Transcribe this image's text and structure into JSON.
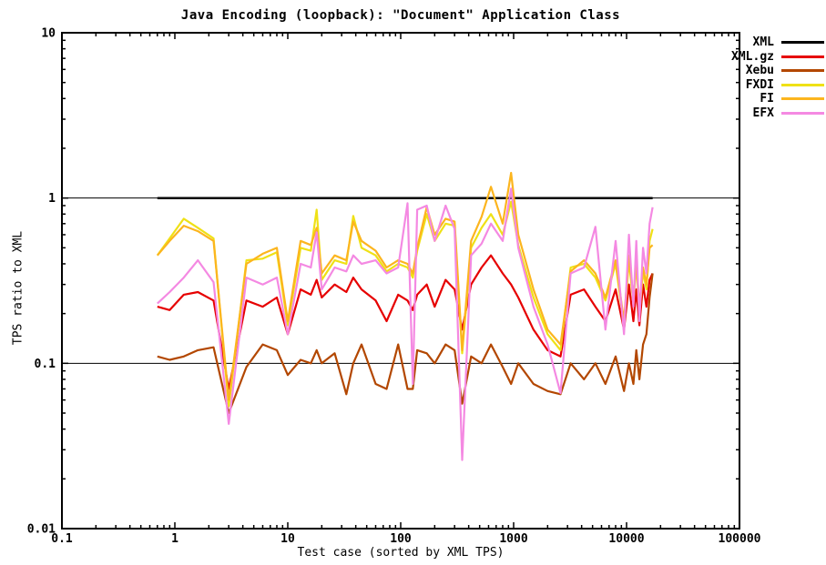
{
  "chart_data": {
    "type": "line",
    "title": "Java Encoding (loopback): \"Document\" Application Class",
    "xlabel": "Test case (sorted by XML TPS)",
    "ylabel": "TPS ratio to XML",
    "x_scale": "log",
    "y_scale": "log",
    "xlim": [
      0.1,
      100000
    ],
    "ylim": [
      0.01,
      10
    ],
    "grid_y": [
      1,
      0.1
    ],
    "legend_position": "top-right-outside",
    "x_ticks": [
      {
        "v": 0.1,
        "label": "0.1"
      },
      {
        "v": 1,
        "label": "1"
      },
      {
        "v": 10,
        "label": "10"
      },
      {
        "v": 100,
        "label": "100"
      },
      {
        "v": 1000,
        "label": "1000"
      },
      {
        "v": 10000,
        "label": "10000"
      },
      {
        "v": 100000,
        "label": "100000"
      }
    ],
    "y_ticks": [
      {
        "v": 10,
        "label": "10"
      },
      {
        "v": 1,
        "label": "1"
      },
      {
        "v": 0.1,
        "label": "0.1"
      },
      {
        "v": 0.01,
        "label": "0.01"
      }
    ],
    "x": [
      0.7,
      0.9,
      1.2,
      1.6,
      2.2,
      3,
      4.3,
      6,
      8,
      10,
      13,
      16,
      18,
      20,
      26,
      33,
      38,
      45,
      60,
      75,
      95,
      115,
      128,
      140,
      170,
      200,
      250,
      300,
      350,
      420,
      520,
      630,
      800,
      950,
      1100,
      1500,
      2000,
      2600,
      3200,
      4200,
      5300,
      6500,
      8000,
      9500,
      10500,
      11500,
      12200,
      13000,
      14000,
      15000,
      16000,
      17000
    ],
    "series": [
      {
        "name": "XML",
        "color": "#000000",
        "width": 2.5,
        "x": [
          0.7,
          17000
        ],
        "values": [
          1,
          1
        ]
      },
      {
        "name": "XML.gz",
        "color": "#e60000",
        "width": 2.2,
        "values": [
          0.22,
          0.21,
          0.26,
          0.27,
          0.24,
          0.07,
          0.24,
          0.22,
          0.25,
          0.15,
          0.28,
          0.26,
          0.32,
          0.25,
          0.3,
          0.27,
          0.33,
          0.28,
          0.24,
          0.18,
          0.26,
          0.24,
          0.21,
          0.26,
          0.3,
          0.22,
          0.32,
          0.28,
          0.16,
          0.3,
          0.38,
          0.45,
          0.35,
          0.3,
          0.25,
          0.16,
          0.12,
          0.11,
          0.26,
          0.28,
          0.22,
          0.18,
          0.28,
          0.16,
          0.3,
          0.18,
          0.28,
          0.17,
          0.3,
          0.22,
          0.32,
          0.35
        ]
      },
      {
        "name": "Xebu",
        "color": "#b34700",
        "width": 2.2,
        "values": [
          0.11,
          0.105,
          0.11,
          0.12,
          0.125,
          0.05,
          0.095,
          0.13,
          0.12,
          0.085,
          0.105,
          0.1,
          0.12,
          0.1,
          0.115,
          0.065,
          0.1,
          0.13,
          0.075,
          0.07,
          0.13,
          0.07,
          0.07,
          0.12,
          0.115,
          0.1,
          0.13,
          0.12,
          0.057,
          0.11,
          0.1,
          0.13,
          0.095,
          0.075,
          0.1,
          0.075,
          0.068,
          0.065,
          0.1,
          0.08,
          0.1,
          0.075,
          0.11,
          0.068,
          0.1,
          0.075,
          0.12,
          0.08,
          0.13,
          0.15,
          0.25,
          0.35
        ]
      },
      {
        "name": "FXDI",
        "color": "#efe116",
        "width": 2.2,
        "values": [
          0.45,
          0.57,
          0.75,
          0.66,
          0.57,
          0.055,
          0.42,
          0.43,
          0.47,
          0.17,
          0.5,
          0.48,
          0.85,
          0.32,
          0.42,
          0.4,
          0.78,
          0.5,
          0.45,
          0.36,
          0.4,
          0.38,
          0.33,
          0.48,
          0.8,
          0.55,
          0.7,
          0.68,
          0.115,
          0.5,
          0.66,
          0.8,
          0.6,
          0.95,
          0.52,
          0.25,
          0.15,
          0.12,
          0.38,
          0.4,
          0.33,
          0.24,
          0.4,
          0.17,
          0.42,
          0.23,
          0.4,
          0.2,
          0.36,
          0.28,
          0.55,
          0.65
        ]
      },
      {
        "name": "FI",
        "color": "#fcb51e",
        "width": 2.2,
        "values": [
          0.45,
          0.55,
          0.68,
          0.63,
          0.55,
          0.06,
          0.4,
          0.46,
          0.5,
          0.18,
          0.55,
          0.52,
          0.66,
          0.35,
          0.45,
          0.42,
          0.72,
          0.55,
          0.48,
          0.38,
          0.42,
          0.4,
          0.35,
          0.5,
          0.88,
          0.6,
          0.75,
          0.72,
          0.12,
          0.55,
          0.77,
          1.17,
          0.7,
          1.42,
          0.6,
          0.28,
          0.16,
          0.13,
          0.36,
          0.42,
          0.35,
          0.25,
          0.42,
          0.18,
          0.45,
          0.25,
          0.42,
          0.22,
          0.38,
          0.3,
          0.5,
          0.52
        ]
      },
      {
        "name": "EFX",
        "color": "#f489e2",
        "width": 2.2,
        "values": [
          0.23,
          0.27,
          0.33,
          0.42,
          0.31,
          0.043,
          0.33,
          0.3,
          0.33,
          0.15,
          0.4,
          0.38,
          0.62,
          0.28,
          0.38,
          0.36,
          0.45,
          0.4,
          0.42,
          0.35,
          0.38,
          0.93,
          0.075,
          0.85,
          0.9,
          0.55,
          0.9,
          0.65,
          0.026,
          0.45,
          0.53,
          0.7,
          0.55,
          1.14,
          0.5,
          0.22,
          0.13,
          0.066,
          0.35,
          0.38,
          0.67,
          0.16,
          0.55,
          0.15,
          0.6,
          0.22,
          0.55,
          0.18,
          0.5,
          0.35,
          0.7,
          0.88
        ]
      }
    ]
  }
}
